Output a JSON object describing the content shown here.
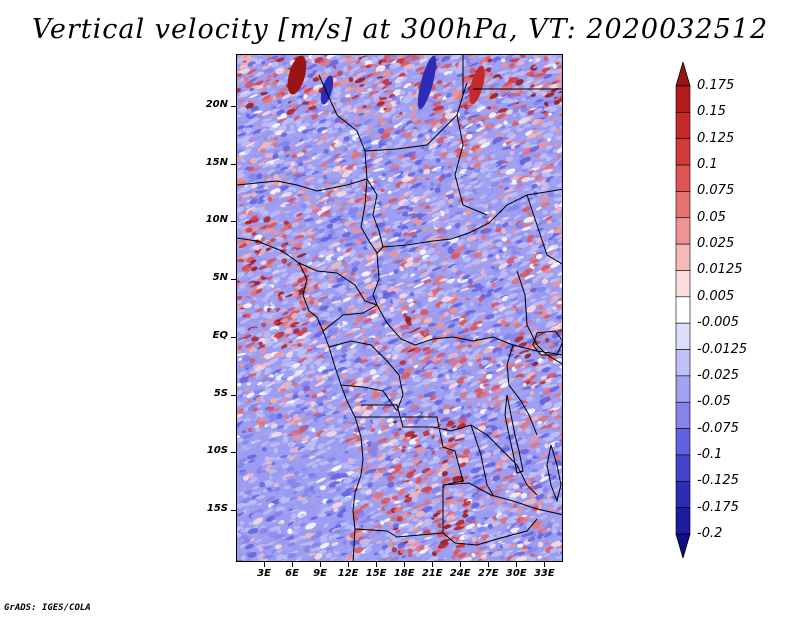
{
  "title": "Vertical velocity [m/s] at 300hPa, VT: 2020032512",
  "credit": "GrADS: IGES/COLA",
  "map": {
    "variable": "vertical velocity",
    "units": "m/s",
    "level": "300hPa",
    "projection": "latlon",
    "lon_range_deg": [
      0,
      35
    ],
    "lat_range_deg": [
      -19.5,
      24.5
    ],
    "lat_ticks": [
      {
        "deg": 20,
        "label": "20N"
      },
      {
        "deg": 15,
        "label": "15N"
      },
      {
        "deg": 10,
        "label": "10N"
      },
      {
        "deg": 5,
        "label": "5N"
      },
      {
        "deg": 0,
        "label": "EQ"
      },
      {
        "deg": -5,
        "label": "5S"
      },
      {
        "deg": -10,
        "label": "10S"
      },
      {
        "deg": -15,
        "label": "15S"
      }
    ],
    "lon_ticks": [
      {
        "deg": 3,
        "label": "3E"
      },
      {
        "deg": 6,
        "label": "6E"
      },
      {
        "deg": 9,
        "label": "9E"
      },
      {
        "deg": 12,
        "label": "12E"
      },
      {
        "deg": 15,
        "label": "15E"
      },
      {
        "deg": 18,
        "label": "18E"
      },
      {
        "deg": 21,
        "label": "21E"
      },
      {
        "deg": 24,
        "label": "24E"
      },
      {
        "deg": 27,
        "label": "27E"
      },
      {
        "deg": 30,
        "label": "30E"
      },
      {
        "deg": 33,
        "label": "33E"
      }
    ],
    "background_color": "#9b9bf2",
    "border_color": "#000000"
  },
  "colorbar": {
    "levels": [
      "0.175",
      "0.15",
      "0.125",
      "0.1",
      "0.075",
      "0.05",
      "0.025",
      "0.0125",
      "0.005",
      "-0.005",
      "-0.0125",
      "-0.025",
      "-0.05",
      "-0.075",
      "-0.1",
      "-0.125",
      "-0.175",
      "-0.2"
    ],
    "colors": [
      "#9a1414",
      "#b31c1c",
      "#c52a2a",
      "#d53a3a",
      "#e05454",
      "#e77272",
      "#ef9494",
      "#f5b9b9",
      "#fbdede",
      "#ffffff",
      "#dcdcfb",
      "#c0c0f8",
      "#a2a2f2",
      "#8484ea",
      "#6262e0",
      "#4444cc",
      "#2c2cb6",
      "#1c1ca0",
      "#0e0e84"
    ]
  }
}
